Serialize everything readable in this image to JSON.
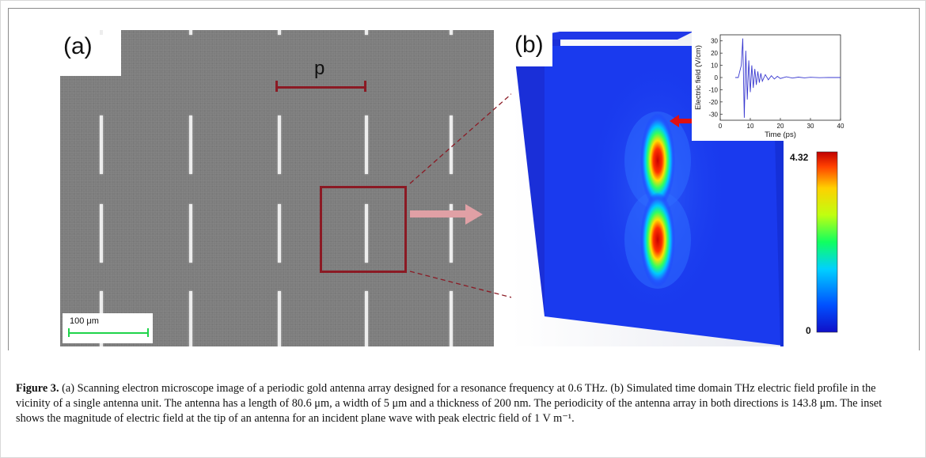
{
  "figure": {
    "panel_a": {
      "label": "(a)",
      "period_label": "p",
      "scale_bar_text": "100 μm"
    },
    "panel_b": {
      "label": "(b)",
      "colorbar": {
        "max_label": "4.32",
        "min_label": "0"
      },
      "inset_chart": {
        "xlabel": "Time (ps)",
        "ylabel": "Electric field (V/cm)",
        "x_ticks": [
          "0",
          "10",
          "20",
          "30",
          "40"
        ],
        "y_ticks": [
          "30",
          "20",
          "10",
          "0",
          "-10",
          "-20",
          "-30"
        ]
      }
    },
    "caption": {
      "label": "Figure 3.",
      "text": " (a) Scanning electron microscope image of a periodic gold antenna array designed for a resonance frequency at 0.6 THz. (b) Simulated time domain THz electric field profile in the vicinity of a single antenna unit. The antenna has a length of 80.6 μm, a width of 5 μm and a thickness of 200 nm. The periodicity of the antenna array in both directions is 143.8 μm. The inset shows the magnitude of electric field at the tip of an antenna for an incident plane wave with peak electric field of 1 V m⁻¹."
    }
  },
  "chart_data": {
    "type": "line",
    "xlabel": "Time (ps)",
    "ylabel": "Electric field (V/cm)",
    "xlim": [
      0,
      40
    ],
    "ylim": [
      -35,
      35
    ],
    "x": [
      5,
      6,
      7,
      7.5,
      8,
      8.5,
      9,
      9.5,
      10,
      10.5,
      11,
      11.5,
      12,
      12.5,
      13,
      13.5,
      14,
      15,
      16,
      17,
      18,
      19,
      20,
      22,
      24,
      26,
      28,
      30,
      33,
      36,
      40
    ],
    "series": [
      {
        "values": [
          0,
          0,
          10,
          32,
          -33,
          22,
          -18,
          14,
          -12,
          10,
          -8.5,
          7,
          -6,
          5,
          -4.2,
          3.5,
          -3,
          2.4,
          -1.9,
          1.5,
          -1.2,
          1,
          -0.8,
          0.6,
          -0.45,
          0.35,
          -0.25,
          0.2,
          -0.1,
          0.05,
          0
        ]
      }
    ],
    "colors": {
      "line": "#3a3ad0"
    }
  },
  "colors": {
    "marker": "#8b1a24",
    "arrow": "#e0a0a5",
    "scalebar": "#1fd44a"
  }
}
